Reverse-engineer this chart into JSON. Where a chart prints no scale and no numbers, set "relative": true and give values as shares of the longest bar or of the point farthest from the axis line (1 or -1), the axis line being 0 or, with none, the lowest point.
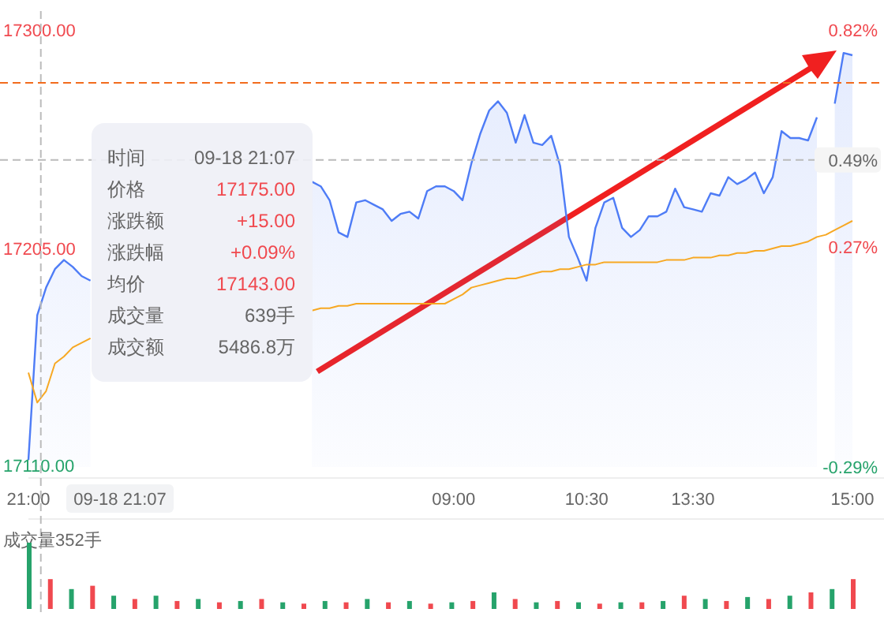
{
  "chart_data": [
    {
      "type": "line",
      "categories": [
        "21:00",
        null,
        null,
        null,
        null,
        null,
        null,
        null,
        null,
        null,
        null,
        null,
        null,
        null,
        null,
        null,
        null,
        null,
        null,
        null,
        null,
        null,
        null,
        null,
        null,
        null,
        null,
        null,
        null,
        null,
        null,
        null,
        null,
        null,
        null,
        null,
        null,
        null,
        null,
        null,
        null,
        null,
        null,
        null,
        null,
        null,
        null,
        null,
        "09:00",
        null,
        null,
        null,
        null,
        null,
        null,
        null,
        null,
        null,
        null,
        null,
        null,
        null,
        null,
        "10:30",
        null,
        null,
        null,
        null,
        null,
        null,
        null,
        null,
        null,
        null,
        null,
        "13:30",
        null,
        null,
        null,
        null,
        null,
        null,
        null,
        null,
        null,
        null,
        null,
        null,
        null,
        null,
        null,
        null,
        null,
        "15:00"
      ],
      "ylim": [
        17110,
        17300
      ],
      "yticks": [
        {
          "value": 17110,
          "label": "17110.00"
        },
        {
          "value": 17205,
          "label": "17205.00"
        },
        {
          "value": 17300,
          "label": "17300.00"
        }
      ],
      "y2lim": [
        -0.29,
        0.82
      ],
      "y2ticks": [
        {
          "value": -0.29,
          "label": "-0.29%"
        },
        {
          "value": 0.27,
          "label": "0.27%"
        },
        {
          "value": 0.82,
          "label": "0.82%"
        }
      ],
      "series": [
        {
          "type": "area",
          "color": "#4e7cf6",
          "values": [
            17113,
            17176,
            17188,
            17196,
            17200,
            17197,
            17193,
            17191,
            null,
            null,
            null,
            null,
            null,
            null,
            null,
            null,
            null,
            null,
            null,
            null,
            null,
            null,
            null,
            null,
            null,
            null,
            null,
            null,
            null,
            null,
            null,
            null,
            17234,
            17232,
            17226,
            17212,
            17210,
            17225,
            17226,
            17224,
            17222,
            17217,
            17220,
            17221,
            17218,
            17230,
            17232,
            17232,
            17230,
            17226,
            17242,
            17255,
            17265,
            17269,
            17264,
            17251,
            17263,
            17251,
            17250,
            17254,
            17241,
            17210,
            17201,
            17191,
            17214,
            17225,
            17227,
            17214,
            17210,
            17213,
            17219,
            17219,
            17221,
            17231,
            17223,
            17222,
            17221,
            17229,
            17228,
            17236,
            17233,
            17235,
            17238,
            17229,
            17236,
            17256,
            17253,
            17253,
            17252,
            17262,
            null,
            17268,
            17290,
            17289
          ]
        },
        {
          "type": "line",
          "color": "#f7a823",
          "values": [
            17151,
            17138,
            17143,
            17155,
            17158,
            17162,
            17164,
            17166,
            null,
            null,
            null,
            null,
            null,
            null,
            null,
            null,
            null,
            null,
            null,
            null,
            null,
            null,
            null,
            null,
            null,
            null,
            null,
            null,
            null,
            null,
            null,
            null,
            17178,
            17179,
            17179,
            17180,
            17180,
            17181,
            17181,
            17181,
            17181,
            17181,
            17181,
            17181,
            17181,
            17181,
            17181,
            17181,
            17183,
            17185,
            17188,
            17189,
            17190,
            17191,
            17192,
            17192,
            17193,
            17194,
            17195,
            17195,
            17196,
            17196,
            17197,
            17198,
            17198,
            17199,
            17199,
            17199,
            17199,
            17199,
            17199,
            17199,
            17200,
            17200,
            17200,
            17201,
            17201,
            17201,
            17202,
            17202,
            17203,
            17203,
            17204,
            17204,
            17205,
            17206,
            17206,
            17207,
            17208,
            17210,
            17211,
            17213,
            17215,
            17217
          ]
        }
      ],
      "ref_lines": [
        {
          "axis": "y",
          "value": 17277,
          "color": "#f26b1d",
          "line_style": "dashed"
        },
        {
          "axis": "y2",
          "value": 0.49,
          "label": "0.49%",
          "color": "#bbbbbb",
          "line_style": "dashed"
        }
      ],
      "annotations": [
        "时间",
        "09-18 21:07",
        "价格",
        "17175.00",
        "涨跌额",
        "+15.00",
        "涨跌幅",
        "+0.09%",
        "均价",
        "17143.00",
        "成交量",
        "639手",
        "成交额",
        "5486.8万",
        "09-18 21:07"
      ]
    },
    {
      "type": "bar",
      "title": "成交量352手",
      "relative": true,
      "categories": [
        null,
        null,
        null,
        null,
        null,
        null,
        null,
        null,
        null,
        null,
        null,
        null,
        null,
        null,
        null,
        null,
        null,
        null,
        null,
        null,
        null,
        null,
        null,
        null,
        null,
        null,
        null,
        null,
        null,
        null,
        null,
        null,
        null,
        null,
        null,
        null,
        null,
        null,
        null,
        null
      ],
      "values": [
        1,
        0.45,
        0.3,
        0.35,
        0.2,
        0.15,
        0.2,
        0.12,
        0.15,
        0.1,
        0.12,
        0.15,
        0.1,
        0.08,
        0.12,
        0.1,
        0.15,
        0.1,
        0.12,
        0.08,
        0.1,
        0.12,
        0.25,
        0.15,
        0.1,
        0.12,
        0.1,
        0.08,
        0.1,
        0.1,
        0.12,
        0.2,
        0.15,
        0.12,
        0.18,
        0.15,
        0.2,
        0.25,
        0.3,
        0.45
      ],
      "colors": [
        "#26a36b",
        "#f0494f",
        "#26a36b",
        "#f0494f",
        "#26a36b",
        "#f0494f",
        "#26a36b",
        "#f0494f",
        "#26a36b",
        "#f0494f",
        "#26a36b",
        "#f0494f",
        "#26a36b",
        "#f0494f",
        "#26a36b",
        "#f0494f",
        "#26a36b",
        "#f0494f",
        "#26a36b",
        "#f0494f",
        "#26a36b",
        "#f0494f",
        "#26a36b",
        "#f0494f",
        "#26a36b",
        "#f0494f",
        "#26a36b",
        "#f0494f",
        "#26a36b",
        "#f0494f",
        "#26a36b",
        "#f0494f",
        "#26a36b",
        "#f0494f",
        "#26a36b",
        "#f0494f",
        "#26a36b",
        "#f0494f",
        "#26a36b",
        "#f0494f"
      ]
    }
  ]
}
